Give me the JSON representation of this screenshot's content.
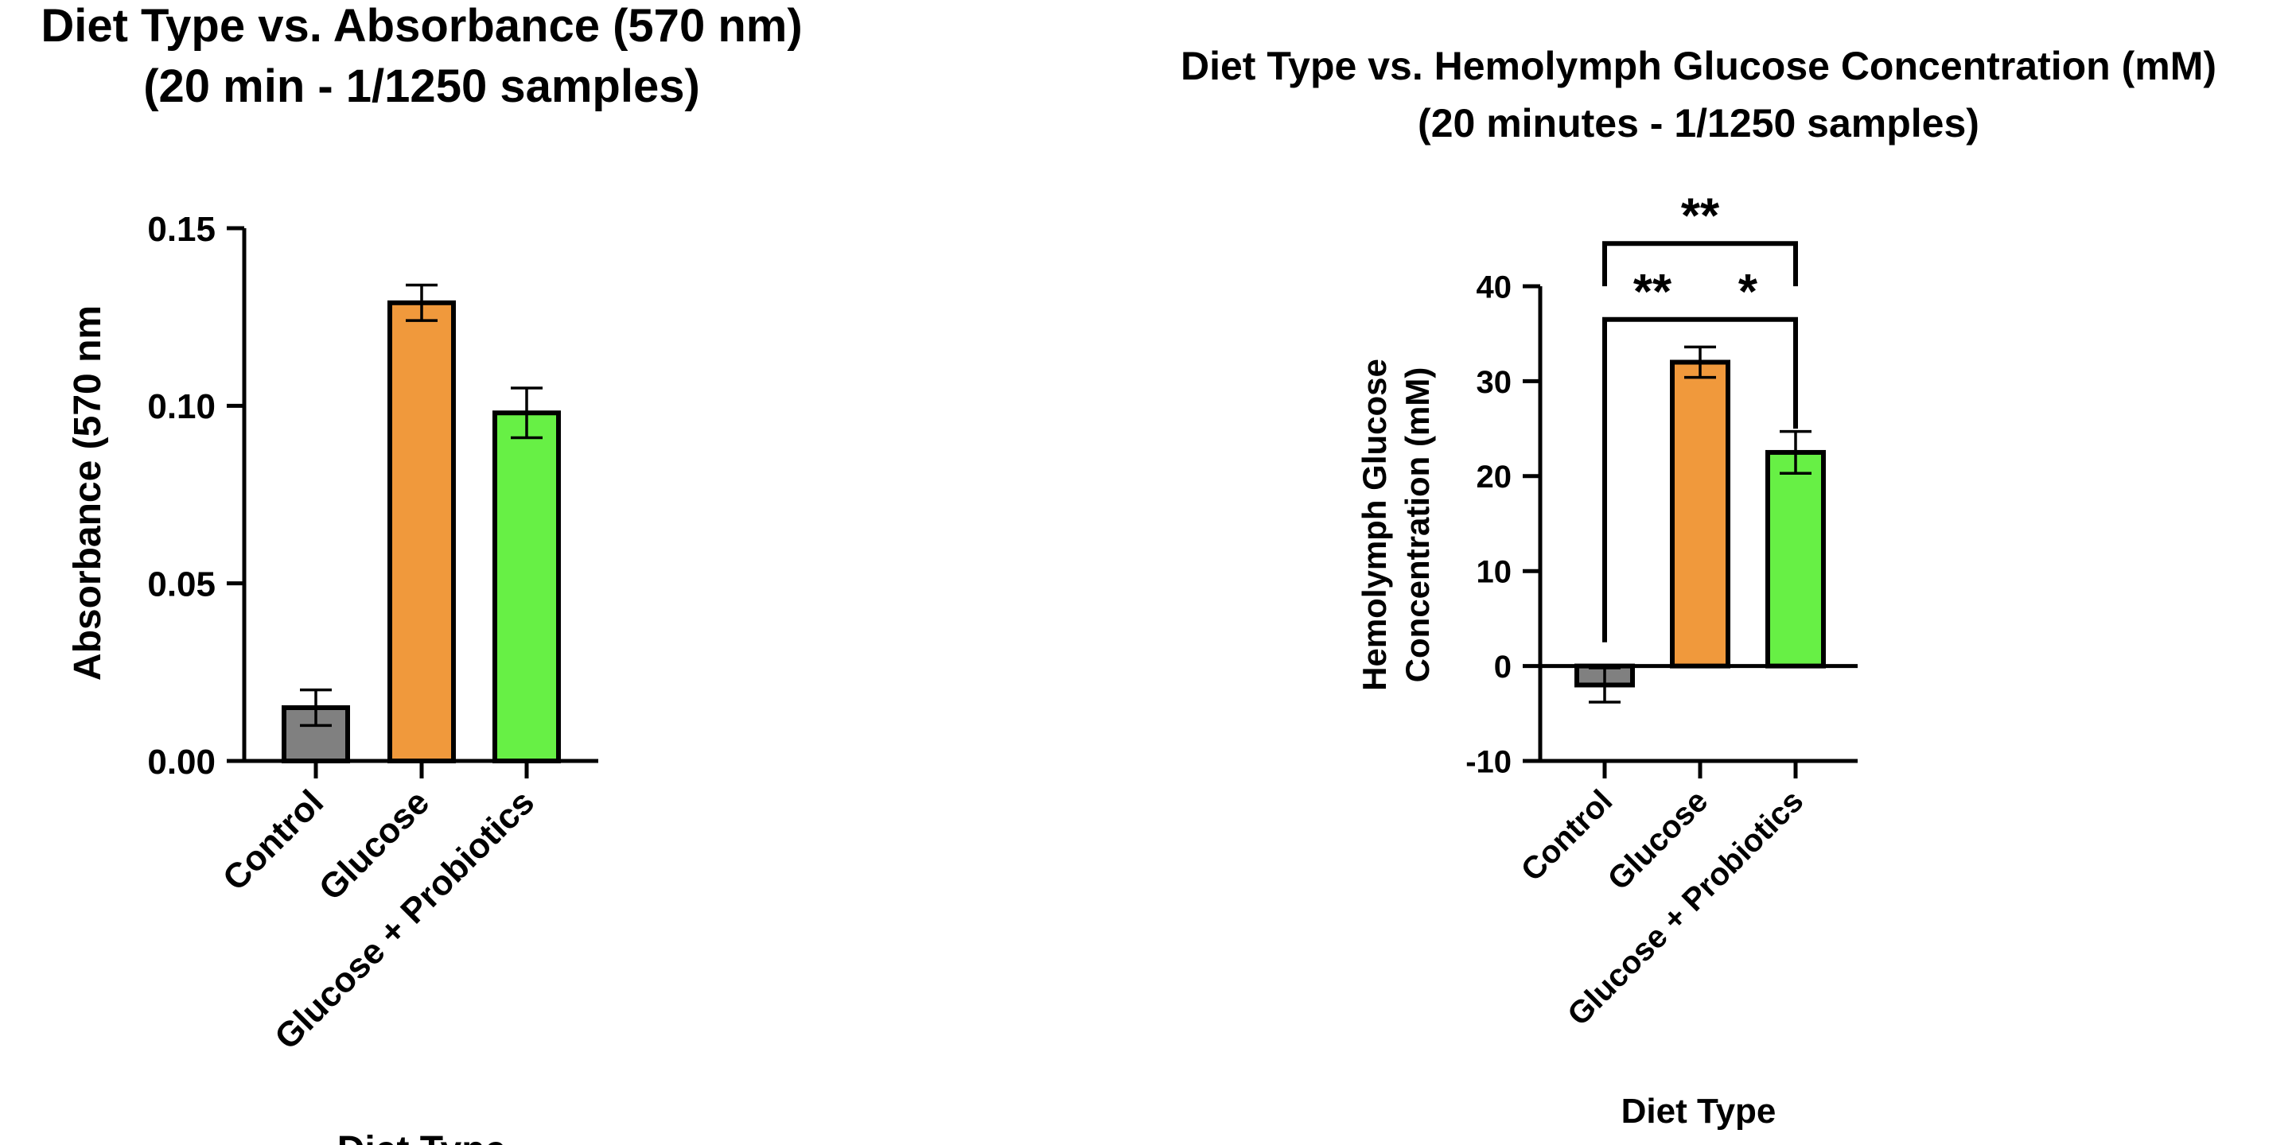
{
  "chart_data": [
    {
      "type": "bar",
      "title": "Diet Type vs. Absorbance (570 nm)",
      "subtitle": "(20 min - 1/1250 samples)",
      "xlabel": "Diet Type",
      "ylabel": "Absorbance (570 nm",
      "categories": [
        "Control",
        "Glucose",
        "Glucose + Probiotics"
      ],
      "values": [
        0.015,
        0.129,
        0.098
      ],
      "errors": [
        0.005,
        0.005,
        0.007
      ],
      "colors": [
        "#808080",
        "#f0993c",
        "#67f045"
      ],
      "ylim": [
        0,
        0.15
      ],
      "yticks": [
        0.0,
        0.05,
        0.1,
        0.15
      ],
      "ytick_labels": [
        "0.00",
        "0.05",
        "0.10",
        "0.15"
      ],
      "grid": false,
      "legend": "none"
    },
    {
      "type": "bar",
      "title": "Diet Type vs. Hemolymph Glucose Concentration (mM)",
      "subtitle": "(20 minutes - 1/1250 samples)",
      "xlabel": "Diet Type",
      "ylabel_lines": [
        "Hemolymph Glucose",
        "Concentration (mM)"
      ],
      "categories": [
        "Control",
        "Glucose",
        "Glucose + Probiotics"
      ],
      "values": [
        -2.0,
        32.0,
        22.5
      ],
      "errors": [
        1.8,
        1.6,
        2.2
      ],
      "colors": [
        "#808080",
        "#f0993c",
        "#67f045"
      ],
      "ylim": [
        -10,
        40
      ],
      "yticks": [
        -10,
        0,
        10,
        20,
        30,
        40
      ],
      "ytick_labels": [
        "-10",
        "0",
        "10",
        "20",
        "30",
        "40"
      ],
      "grid": false,
      "legend": "none",
      "significance": [
        {
          "from": 0,
          "to": 1,
          "label": "**",
          "level": 36.5,
          "drop_from": 2.5,
          "drop_to": 36.5
        },
        {
          "from": 1,
          "to": 2,
          "label": "*",
          "level": 36.5,
          "drop_from": 36.5,
          "drop_to": 25
        },
        {
          "from": 0,
          "to": 2,
          "label": "**",
          "level": 44.5,
          "drop_from": 40.0,
          "drop_to": 40.0
        }
      ]
    }
  ]
}
